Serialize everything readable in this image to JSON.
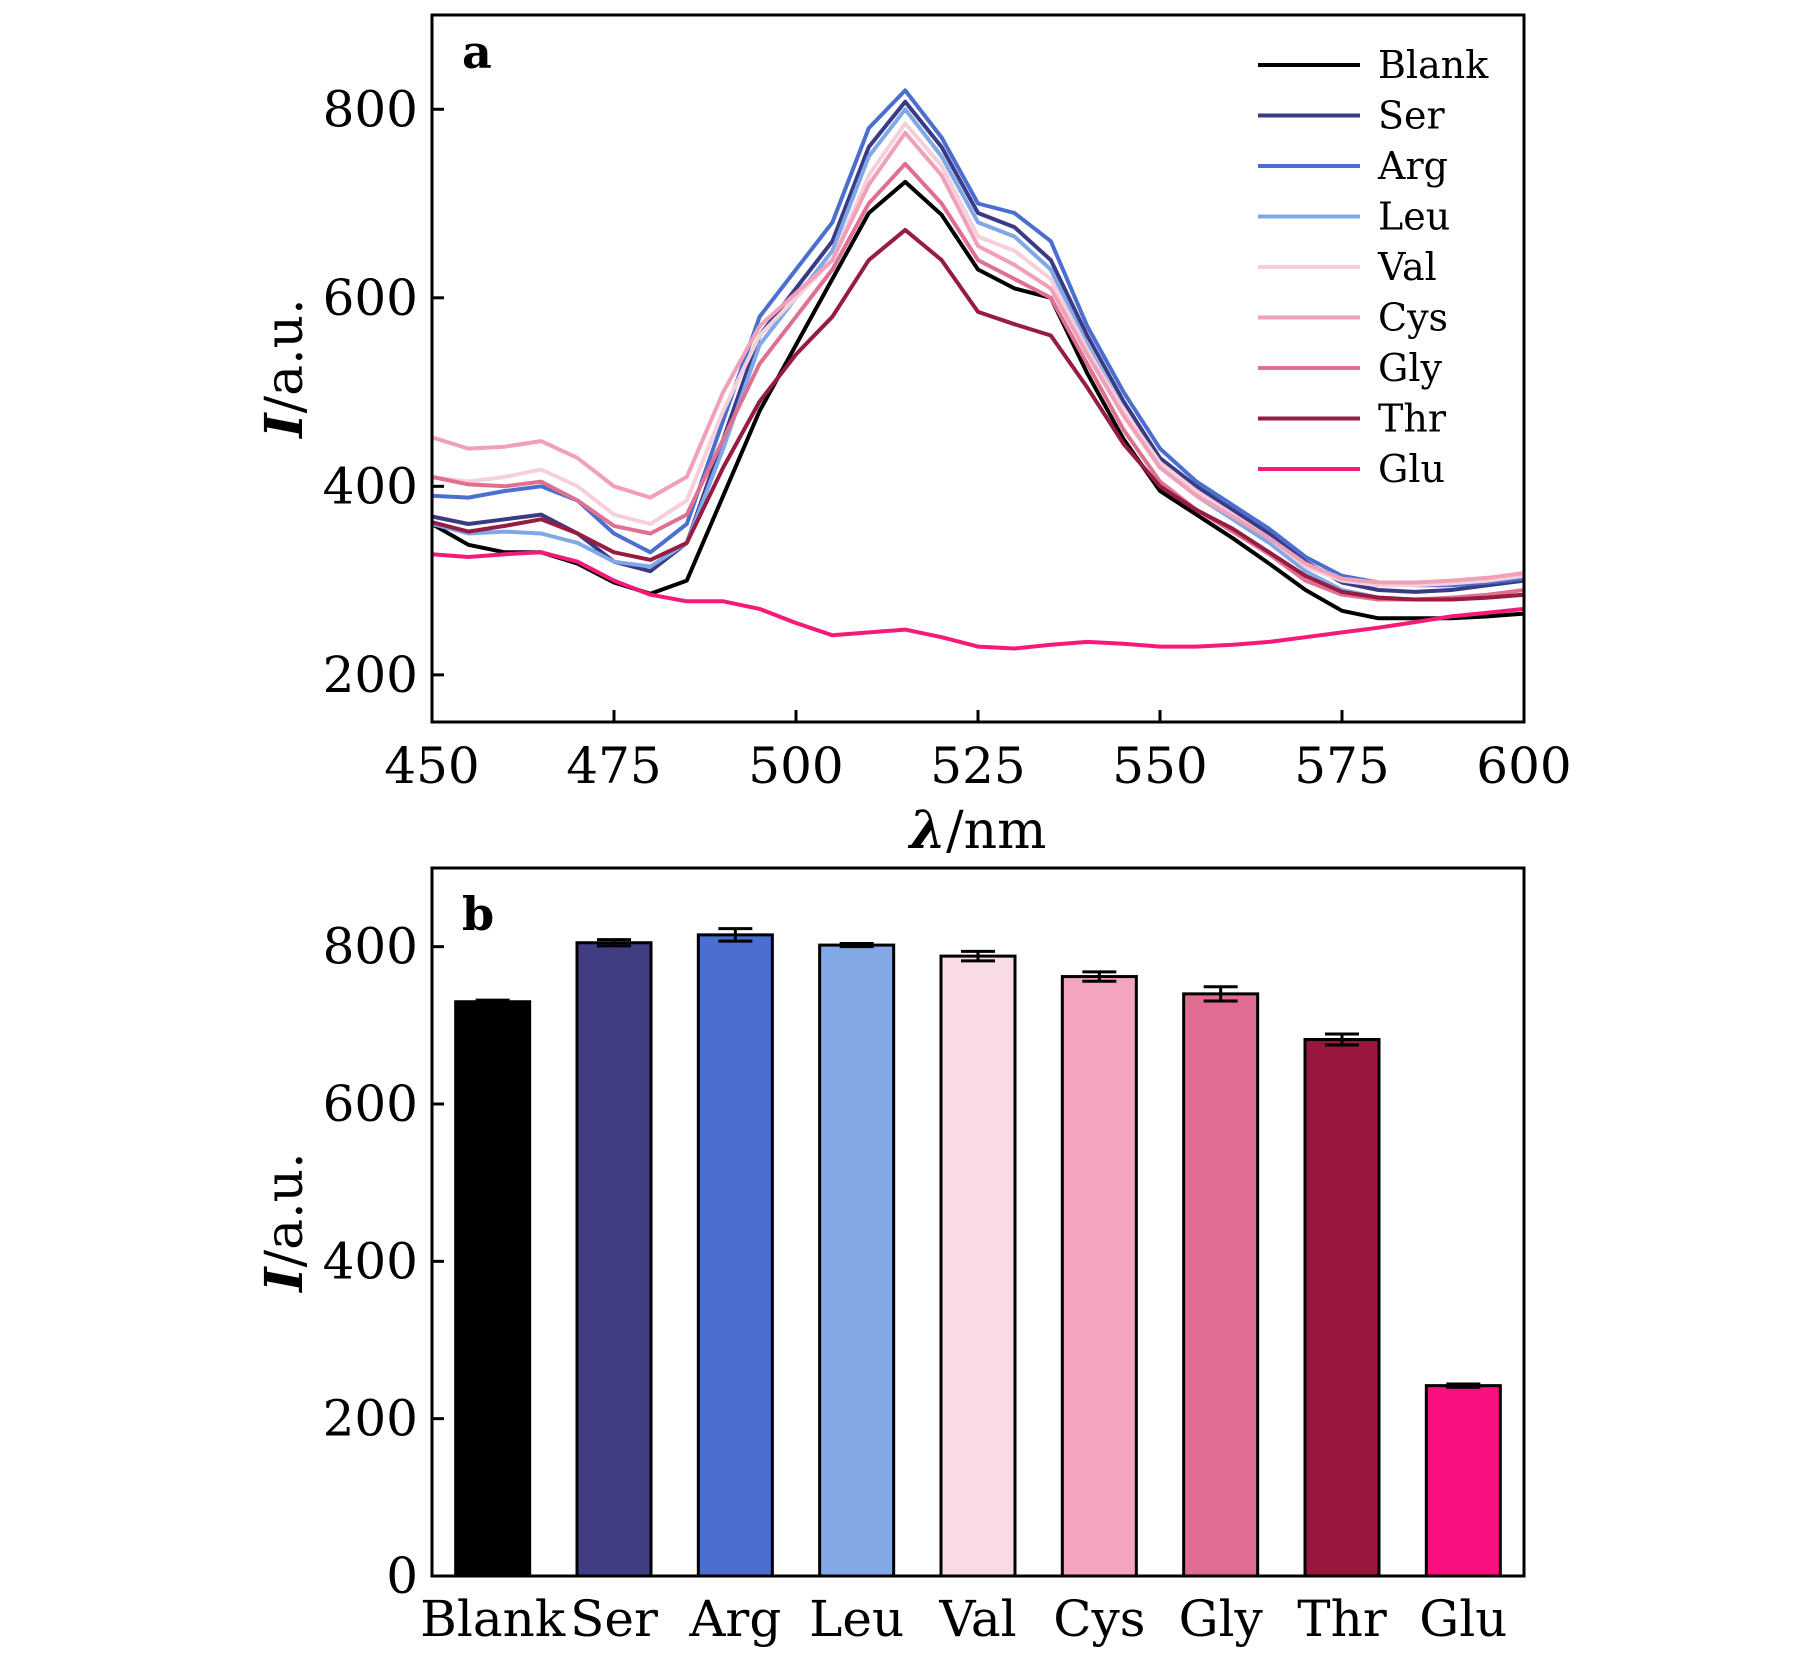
{
  "chart_data": [
    {
      "panel_label": "a",
      "type": "line",
      "xlabel": "λ/nm",
      "ylabel": "I/a.u.",
      "ylabel_italic": "I",
      "ylabel_rest": "/a.u.",
      "xlabel_symbol": "λ",
      "xlabel_rest": "/nm",
      "xlim": [
        450,
        600
      ],
      "ylim": [
        150,
        900
      ],
      "xticks": [
        450,
        475,
        500,
        525,
        550,
        575,
        600
      ],
      "yticks": [
        200,
        400,
        600,
        800
      ],
      "grid": false,
      "legend": "top-right",
      "x": [
        450,
        455,
        460,
        465,
        470,
        475,
        480,
        485,
        490,
        495,
        500,
        505,
        510,
        515,
        520,
        525,
        530,
        535,
        540,
        545,
        550,
        555,
        560,
        565,
        570,
        575,
        580,
        585,
        590,
        595,
        600
      ],
      "series": [
        {
          "name": "Blank",
          "color": "#000000",
          "values": [
            360,
            338,
            330,
            330,
            318,
            298,
            286,
            300,
            390,
            480,
            550,
            620,
            690,
            723,
            688,
            630,
            610,
            600,
            520,
            450,
            395,
            370,
            345,
            318,
            290,
            268,
            260,
            260,
            260,
            262,
            265
          ]
        },
        {
          "name": "Ser",
          "color": "#3b3a86",
          "values": [
            368,
            360,
            365,
            370,
            350,
            320,
            310,
            340,
            450,
            560,
            610,
            660,
            760,
            808,
            760,
            690,
            675,
            640,
            560,
            490,
            430,
            400,
            375,
            350,
            320,
            298,
            290,
            288,
            290,
            295,
            300
          ]
        },
        {
          "name": "Arg",
          "color": "#4a6fd0",
          "values": [
            390,
            388,
            395,
            400,
            385,
            350,
            330,
            360,
            470,
            580,
            630,
            680,
            780,
            820,
            770,
            700,
            690,
            660,
            570,
            500,
            440,
            405,
            380,
            355,
            325,
            305,
            298,
            295,
            295,
            298,
            302
          ]
        },
        {
          "name": "Leu",
          "color": "#7fa8e8",
          "values": [
            360,
            350,
            352,
            350,
            340,
            320,
            315,
            340,
            440,
            550,
            600,
            650,
            750,
            800,
            750,
            680,
            665,
            630,
            550,
            480,
            420,
            390,
            365,
            340,
            310,
            290,
            282,
            280,
            280,
            282,
            285
          ]
        },
        {
          "name": "Val",
          "color": "#f6cfdb",
          "values": [
            410,
            405,
            410,
            418,
            400,
            370,
            360,
            385,
            480,
            560,
            600,
            640,
            730,
            785,
            740,
            665,
            650,
            620,
            545,
            480,
            425,
            395,
            370,
            345,
            315,
            300,
            295,
            295,
            297,
            300,
            305
          ]
        },
        {
          "name": "Cys",
          "color": "#f0a0b8",
          "values": [
            452,
            440,
            442,
            448,
            430,
            400,
            388,
            410,
            500,
            570,
            605,
            640,
            720,
            775,
            730,
            655,
            635,
            610,
            540,
            475,
            420,
            390,
            368,
            345,
            318,
            302,
            298,
            298,
            300,
            303,
            308
          ]
        },
        {
          "name": "Gly",
          "color": "#e07090",
          "values": [
            410,
            402,
            400,
            405,
            385,
            358,
            350,
            370,
            450,
            530,
            580,
            630,
            700,
            742,
            700,
            640,
            620,
            600,
            530,
            460,
            405,
            375,
            352,
            328,
            300,
            285,
            280,
            280,
            282,
            285,
            290
          ]
        },
        {
          "name": "Thr",
          "color": "#961c40",
          "values": [
            362,
            352,
            358,
            365,
            350,
            330,
            322,
            340,
            420,
            490,
            540,
            580,
            640,
            672,
            640,
            585,
            572,
            560,
            505,
            445,
            400,
            375,
            355,
            330,
            305,
            288,
            282,
            280,
            280,
            282,
            285
          ]
        },
        {
          "name": "Glu",
          "color": "#f51a7a",
          "values": [
            328,
            325,
            328,
            330,
            320,
            300,
            285,
            278,
            278,
            270,
            255,
            242,
            245,
            248,
            240,
            230,
            228,
            232,
            235,
            233,
            230,
            230,
            232,
            235,
            240,
            245,
            250,
            256,
            262,
            266,
            270
          ]
        }
      ]
    },
    {
      "panel_label": "b",
      "type": "bar",
      "xlabel": "",
      "ylabel": "I/a.u.",
      "ylabel_italic": "I",
      "ylabel_rest": "/a.u.",
      "ylim": [
        0,
        900
      ],
      "yticks": [
        0,
        200,
        400,
        600,
        800
      ],
      "grid": false,
      "categories": [
        "Blank",
        "Ser",
        "Arg",
        "Leu",
        "Val",
        "Cys",
        "Gly",
        "Thr",
        "Glu"
      ],
      "values": [
        730,
        805,
        815,
        802,
        788,
        762,
        740,
        682,
        242
      ],
      "errors": [
        2,
        4,
        8,
        2,
        6,
        6,
        9,
        7,
        2
      ],
      "colors": [
        "#000000",
        "#413d82",
        "#4a6fd0",
        "#82a9e6",
        "#f9dbe4",
        "#f4a4bd",
        "#e06d91",
        "#99163f",
        "#fc0f7e"
      ]
    }
  ]
}
